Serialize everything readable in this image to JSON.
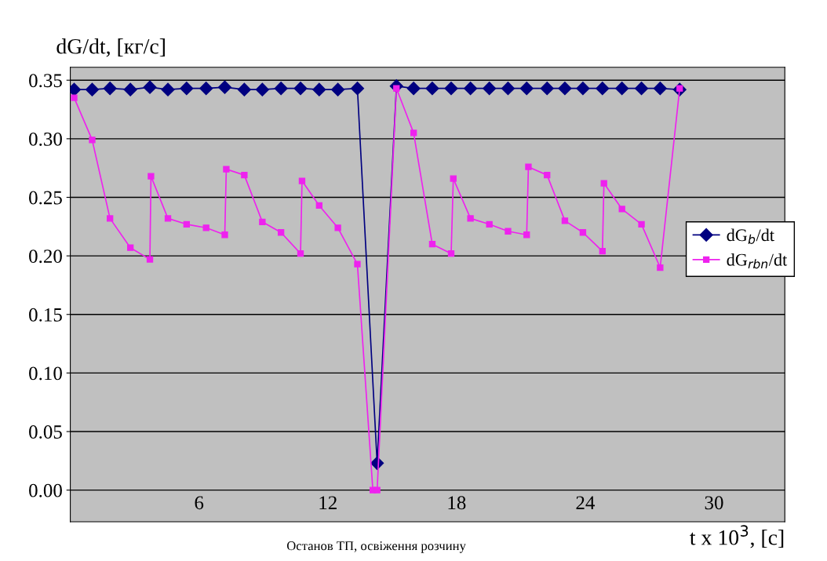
{
  "chart_data": {
    "type": "line",
    "ylabel": "dG/dt, [кг/с]",
    "xlabel": "t x 10$^{3}$, [c]",
    "annotations": [
      "Останов ТП, освіження розчину"
    ],
    "xlim": [
      0,
      33.3
    ],
    "xticks": [
      6,
      12,
      18,
      24,
      30
    ],
    "ylim": [
      -0.027,
      0.361
    ],
    "yticks": [
      {
        "value": 0,
        "label": "0.00"
      },
      {
        "value": 0.05,
        "label": "0.05"
      },
      {
        "value": 0.1,
        "label": "0.10"
      },
      {
        "value": 0.15,
        "label": "0.15"
      },
      {
        "value": 0.2,
        "label": "0.20"
      },
      {
        "value": 0.25,
        "label": "0.25"
      },
      {
        "value": 0.3,
        "label": "0.30"
      },
      {
        "value": 0.35,
        "label": "0.35"
      }
    ],
    "grid": "y",
    "legend": "right",
    "series": [
      {
        "name": "dG$_{b}$/dt",
        "color": "#000080",
        "marker": "diamond",
        "x": [
          0.18,
          1.02,
          1.85,
          2.8,
          3.71,
          4.55,
          5.42,
          6.33,
          7.2,
          8.11,
          8.95,
          9.82,
          10.73,
          11.6,
          12.47,
          13.38,
          14.3,
          15.2,
          16.0,
          16.87,
          17.75,
          18.65,
          19.53,
          20.4,
          21.27,
          22.22,
          23.05,
          23.89,
          24.8,
          25.71,
          26.62,
          27.49,
          28.4
        ],
        "values": [
          0.342,
          0.342,
          0.343,
          0.342,
          0.344,
          0.342,
          0.343,
          0.343,
          0.344,
          0.342,
          0.342,
          0.343,
          0.343,
          0.342,
          0.342,
          0.343,
          0.023,
          0.345,
          0.343,
          0.343,
          0.343,
          0.343,
          0.343,
          0.343,
          0.343,
          0.343,
          0.343,
          0.343,
          0.343,
          0.343,
          0.343,
          0.343,
          0.342
        ]
      },
      {
        "name": "dG$_{rbn}$/dt",
        "color": "#ee22ee",
        "marker": "square",
        "x": [
          0.18,
          1.02,
          1.85,
          2.8,
          3.71,
          3.76,
          4.55,
          5.42,
          6.33,
          7.2,
          7.27,
          8.11,
          8.95,
          9.82,
          10.73,
          10.8,
          11.6,
          12.47,
          13.38,
          14.1,
          14.3,
          15.2,
          16.0,
          16.87,
          17.75,
          17.85,
          18.65,
          19.53,
          20.4,
          21.27,
          21.35,
          22.22,
          23.05,
          23.89,
          24.8,
          24.87,
          25.71,
          26.62,
          27.49,
          28.4
        ],
        "values": [
          0.335,
          0.299,
          0.232,
          0.207,
          0.197,
          0.268,
          0.232,
          0.227,
          0.224,
          0.218,
          0.274,
          0.269,
          0.229,
          0.22,
          0.202,
          0.264,
          0.243,
          0.224,
          0.193,
          0.0,
          0.0,
          0.343,
          0.305,
          0.21,
          0.202,
          0.266,
          0.232,
          0.227,
          0.221,
          0.218,
          0.276,
          0.269,
          0.23,
          0.22,
          0.204,
          0.262,
          0.24,
          0.227,
          0.19,
          0.343
        ]
      }
    ]
  }
}
